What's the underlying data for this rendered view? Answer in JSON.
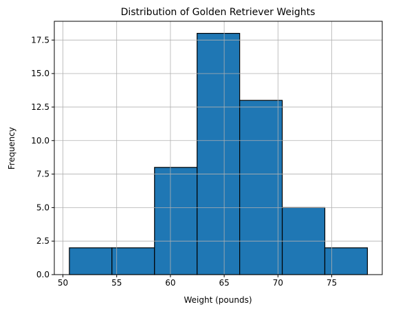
{
  "chart_data": {
    "type": "bar",
    "title": "Distribution of Golden Retriever Weights",
    "xlabel": "Weight (pounds)",
    "ylabel": "Frequency",
    "bins": [
      {
        "x0": 50.6,
        "x1": 54.56,
        "count": 2
      },
      {
        "x0": 54.56,
        "x1": 58.52,
        "count": 2
      },
      {
        "x0": 58.52,
        "x1": 62.48,
        "count": 8
      },
      {
        "x0": 62.48,
        "x1": 66.44,
        "count": 18
      },
      {
        "x0": 66.44,
        "x1": 70.4,
        "count": 13
      },
      {
        "x0": 70.4,
        "x1": 74.36,
        "count": 5
      },
      {
        "x0": 74.36,
        "x1": 78.32,
        "count": 2
      }
    ],
    "xlim": [
      49.2,
      79.7
    ],
    "ylim": [
      0,
      18.9
    ],
    "xticks": [
      50,
      55,
      60,
      65,
      70,
      75
    ],
    "yticks": [
      0.0,
      2.5,
      5.0,
      7.5,
      10.0,
      12.5,
      15.0,
      17.5
    ],
    "xtick_labels": [
      "50",
      "55",
      "60",
      "65",
      "70",
      "75"
    ],
    "ytick_labels": [
      "0.0",
      "2.5",
      "5.0",
      "7.5",
      "10.0",
      "12.5",
      "15.0",
      "17.5"
    ],
    "grid": true,
    "colors": {
      "bar": "#1f77b4",
      "edge": "#000000",
      "grid": "#b0b0b0"
    }
  }
}
